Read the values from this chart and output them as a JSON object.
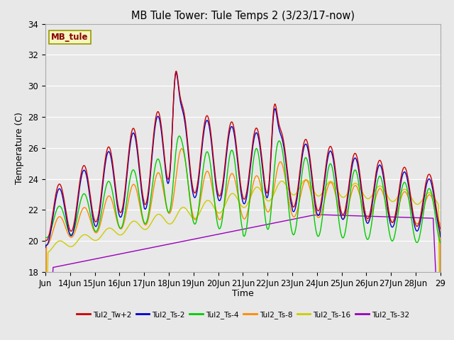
{
  "title": "MB Tule Tower: Tule Temps 2 (3/23/17-now)",
  "xlabel": "Time",
  "ylabel": "Temperature (C)",
  "ylim": [
    18,
    34
  ],
  "fig_bg": "#e8e8e8",
  "plot_bg": "#e8e8e8",
  "legend_label": "MB_tule",
  "series_colors": {
    "Tul2_Tw+2": "#cc0000",
    "Tul2_Ts-2": "#0000cc",
    "Tul2_Ts-4": "#00cc00",
    "Tul2_Ts-8": "#ff8800",
    "Tul2_Ts-16": "#cccc00",
    "Tul2_Ts-32": "#9900bb"
  },
  "x_tick_labels": [
    "Jun",
    "14Jun",
    "15Jun",
    "16Jun",
    "17Jun",
    "18Jun",
    "19Jun",
    "20Jun",
    "21Jun",
    "22Jun",
    "23Jun",
    "24Jun",
    "25Jun",
    "26Jun",
    "27Jun",
    "28Jun",
    "29"
  ],
  "y_ticks": [
    18,
    20,
    22,
    24,
    26,
    28,
    30,
    32,
    34
  ]
}
